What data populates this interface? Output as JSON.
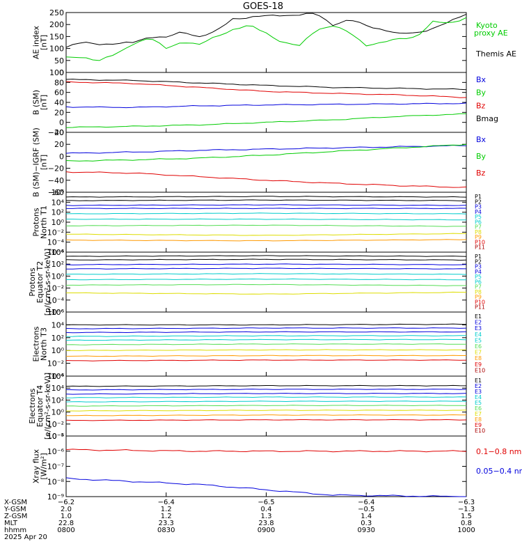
{
  "title": "GOES-18",
  "colors": {
    "black": "#000000",
    "red": "#e00000",
    "green": "#00cc00",
    "blue": "#0000dd",
    "cyan": "#00cccc",
    "lightgreen": "#55dd55",
    "yellow": "#dddd00",
    "orange": "#ff9900",
    "darkred": "#aa0000"
  },
  "chart_data": [
    {
      "type": "line",
      "id": "ae",
      "ylabel": "AE index\n[nT]",
      "ylim": [
        0,
        250
      ],
      "yticks": [
        "0",
        "50",
        "100",
        "150",
        "200",
        "250"
      ],
      "grid": false,
      "legend": [
        {
          "name": "Kyoto\nproxy AE",
          "color": "#00cc00"
        },
        {
          "name": "Themis AE",
          "color": "#000000"
        }
      ],
      "x": [
        0,
        5,
        10,
        15,
        20,
        25,
        30,
        35,
        40,
        45,
        50,
        55,
        60,
        65,
        70,
        75,
        80,
        85,
        90,
        95,
        100,
        105,
        110,
        115,
        120
      ],
      "series": [
        {
          "name": "Themis AE",
          "color": "#000000",
          "values": [
            105,
            125,
            120,
            118,
            125,
            150,
            145,
            170,
            150,
            170,
            225,
            230,
            235,
            240,
            240,
            245,
            200,
            220,
            195,
            180,
            160,
            165,
            185,
            210,
            245
          ]
        },
        {
          "name": "Kyoto proxy AE",
          "color": "#00cc00",
          "values": [
            60,
            65,
            50,
            75,
            120,
            145,
            100,
            130,
            115,
            150,
            180,
            195,
            165,
            125,
            110,
            180,
            195,
            165,
            115,
            125,
            140,
            150,
            210,
            205,
            230
          ]
        }
      ]
    },
    {
      "type": "line",
      "id": "bsm",
      "ylabel": "B (SM)\n[nT]",
      "ylim": [
        -20,
        100
      ],
      "yticks": [
        "−20",
        "0",
        "20",
        "40",
        "60",
        "80",
        "100"
      ],
      "grid": false,
      "legend": [
        {
          "name": "Bx",
          "color": "#0000dd"
        },
        {
          "name": "By",
          "color": "#00cc00"
        },
        {
          "name": "Bz",
          "color": "#e00000"
        },
        {
          "name": "Bmag",
          "color": "#000000"
        }
      ],
      "x": [
        0,
        20,
        40,
        60,
        80,
        100,
        120
      ],
      "series": [
        {
          "name": "Bmag",
          "color": "#000000",
          "values": [
            86,
            84,
            79,
            74,
            70,
            68,
            66
          ]
        },
        {
          "name": "Bz",
          "color": "#e00000",
          "values": [
            81,
            78,
            70,
            62,
            58,
            55,
            50
          ]
        },
        {
          "name": "Bx",
          "color": "#0000dd",
          "values": [
            31,
            30,
            33,
            35,
            36,
            37,
            38
          ]
        },
        {
          "name": "By",
          "color": "#00cc00",
          "values": [
            -10,
            -8,
            -5,
            0,
            5,
            12,
            17
          ]
        }
      ]
    },
    {
      "type": "line",
      "id": "bigrf",
      "ylabel": "B (SM)−IGRF (SM)\n[nT]",
      "ylim": [
        -60,
        40
      ],
      "yticks": [
        "−60",
        "−40",
        "−20",
        "0",
        "20",
        "40"
      ],
      "grid": false,
      "legend": [
        {
          "name": "Bx",
          "color": "#0000dd"
        },
        {
          "name": "By",
          "color": "#00cc00"
        },
        {
          "name": "Bz",
          "color": "#e00000"
        }
      ],
      "x": [
        0,
        20,
        40,
        60,
        80,
        100,
        120
      ],
      "series": [
        {
          "name": "Bx",
          "color": "#0000dd",
          "values": [
            5,
            7,
            10,
            12,
            14,
            16,
            18
          ]
        },
        {
          "name": "By",
          "color": "#00cc00",
          "values": [
            -8,
            -6,
            -3,
            2,
            8,
            14,
            20
          ]
        },
        {
          "name": "Bz",
          "color": "#e00000",
          "values": [
            -26,
            -28,
            -34,
            -40,
            -45,
            -49,
            -52
          ]
        }
      ]
    },
    {
      "type": "line",
      "id": "protons-t1",
      "ylabel": "Protons\nNorth T1",
      "ylim_exp": [
        -6,
        4
      ],
      "yticks": [
        "10⁶",
        "10⁴",
        "10²",
        "10⁰",
        "10⁻²",
        "10⁻⁴",
        "10⁻⁶"
      ],
      "legend": [
        {
          "name": "P1",
          "color": "#000000"
        },
        {
          "name": "P2",
          "color": "#000000"
        },
        {
          "name": "P3",
          "color": "#0000dd"
        },
        {
          "name": "P4",
          "color": "#0000dd"
        },
        {
          "name": "P5",
          "color": "#00cccc"
        },
        {
          "name": "P6",
          "color": "#00cccc"
        },
        {
          "name": "P7",
          "color": "#55dd55"
        },
        {
          "name": "P8",
          "color": "#dddd00"
        },
        {
          "name": "P9",
          "color": "#ff9900"
        },
        {
          "name": "P10",
          "color": "#e00000"
        },
        {
          "name": "P11",
          "color": "#aa0000"
        }
      ],
      "series": [
        {
          "name": "P1",
          "color": "#000000",
          "log_values": [
            3.2,
            3.3,
            3.2
          ]
        },
        {
          "name": "P2",
          "color": "#000000",
          "log_values": [
            2.6,
            2.7,
            2.6
          ]
        },
        {
          "name": "P3",
          "color": "#0000dd",
          "log_values": [
            1.8,
            1.9,
            1.8
          ]
        },
        {
          "name": "P4",
          "color": "#0000dd",
          "log_values": [
            1.3,
            1.3,
            1.3
          ]
        },
        {
          "name": "P5",
          "color": "#00cccc",
          "log_values": [
            0.4,
            0.5,
            0.4
          ]
        },
        {
          "name": "P6",
          "color": "#00cccc",
          "log_values": [
            -0.5,
            -0.5,
            -0.6
          ]
        },
        {
          "name": "P7",
          "color": "#55dd55",
          "log_values": [
            -1.6,
            -1.5,
            -1.7
          ]
        },
        {
          "name": "P8",
          "color": "#dddd00",
          "log_values": [
            -3.0,
            -3.2,
            -2.9
          ]
        },
        {
          "name": "P9",
          "color": "#ff9900",
          "log_values": [
            -4.0,
            -4.1,
            -3.9
          ]
        }
      ]
    },
    {
      "type": "line",
      "id": "protons-t2",
      "ylabel": "Protons\nEquator T2\n[p/(cm²-s-sr-keV)]",
      "ylim_exp": [
        -6,
        4
      ],
      "yticks": [
        "10⁴",
        "10²",
        "10⁰",
        "10⁻²",
        "10⁻⁴",
        "10⁻⁶"
      ],
      "legend": [
        {
          "name": "P1",
          "color": "#000000"
        },
        {
          "name": "P2",
          "color": "#000000"
        },
        {
          "name": "P3",
          "color": "#0000dd"
        },
        {
          "name": "P4",
          "color": "#0000dd"
        },
        {
          "name": "P5",
          "color": "#00cccc"
        },
        {
          "name": "P6",
          "color": "#00cccc"
        },
        {
          "name": "P7",
          "color": "#55dd55"
        },
        {
          "name": "P8",
          "color": "#dddd00"
        },
        {
          "name": "P9",
          "color": "#ff9900"
        },
        {
          "name": "P10",
          "color": "#e00000"
        },
        {
          "name": "P11",
          "color": "#aa0000"
        }
      ],
      "series": [
        {
          "name": "P1",
          "color": "#000000",
          "log_values": [
            3.3,
            3.4,
            3.3
          ]
        },
        {
          "name": "P2",
          "color": "#000000",
          "log_values": [
            2.7,
            2.8,
            2.7
          ]
        },
        {
          "name": "P3",
          "color": "#0000dd",
          "log_values": [
            1.9,
            2.0,
            1.9
          ]
        },
        {
          "name": "P4",
          "color": "#0000dd",
          "log_values": [
            1.2,
            1.3,
            1.2
          ]
        },
        {
          "name": "P5",
          "color": "#00cccc",
          "log_values": [
            0.3,
            0.4,
            0.3
          ]
        },
        {
          "name": "P6",
          "color": "#00cccc",
          "log_values": [
            -0.6,
            -0.5,
            -0.6
          ]
        },
        {
          "name": "P7",
          "color": "#55dd55",
          "log_values": [
            -1.5,
            -1.4,
            -1.6
          ]
        },
        {
          "name": "P8",
          "color": "#dddd00",
          "log_values": [
            -2.8,
            -3.0,
            -2.7
          ]
        }
      ]
    },
    {
      "type": "line",
      "id": "electrons-t3",
      "ylabel": "Electrons\nNorth T3",
      "ylim_exp": [
        -4,
        6
      ],
      "yticks": [
        "10⁶",
        "10⁴",
        "10²",
        "10⁰",
        "10⁻²",
        "10⁻⁴"
      ],
      "legend": [
        {
          "name": "E1",
          "color": "#000000"
        },
        {
          "name": "E2",
          "color": "#0000dd"
        },
        {
          "name": "E3",
          "color": "#0000dd"
        },
        {
          "name": "E4",
          "color": "#00cccc"
        },
        {
          "name": "E5",
          "color": "#00cccc"
        },
        {
          "name": "E6",
          "color": "#55dd55"
        },
        {
          "name": "E7",
          "color": "#dddd00"
        },
        {
          "name": "E8",
          "color": "#ff9900"
        },
        {
          "name": "E9",
          "color": "#e00000"
        },
        {
          "name": "E10",
          "color": "#aa0000"
        }
      ],
      "series": [
        {
          "name": "E1",
          "color": "#000000",
          "log_values": [
            4.0,
            4.0,
            4.1
          ]
        },
        {
          "name": "E2",
          "color": "#0000dd",
          "log_values": [
            3.4,
            3.5,
            3.5
          ]
        },
        {
          "name": "E3",
          "color": "#0000dd",
          "log_values": [
            2.8,
            2.9,
            2.9
          ]
        },
        {
          "name": "E4",
          "color": "#00cccc",
          "log_values": [
            2.2,
            2.3,
            2.3
          ]
        },
        {
          "name": "E5",
          "color": "#00cccc",
          "log_values": [
            1.6,
            1.7,
            1.7
          ]
        },
        {
          "name": "E6",
          "color": "#55dd55",
          "log_values": [
            0.9,
            1.0,
            1.0
          ]
        },
        {
          "name": "E7",
          "color": "#dddd00",
          "log_values": [
            0.0,
            0.1,
            0.1
          ]
        },
        {
          "name": "E8",
          "color": "#ff9900",
          "log_values": [
            -0.9,
            -0.8,
            -0.8
          ]
        },
        {
          "name": "E9",
          "color": "#e00000",
          "log_values": [
            -1.6,
            -1.5,
            -1.5
          ]
        }
      ]
    },
    {
      "type": "line",
      "id": "electrons-t4",
      "ylabel": "Electrons\nEquator T4\n[e/(cm²-s-sr-keV)]",
      "ylim_exp": [
        -4,
        6
      ],
      "yticks": [
        "10⁶",
        "10⁴",
        "10²",
        "10⁰",
        "10⁻²",
        "10⁻⁴"
      ],
      "legend": [
        {
          "name": "E1",
          "color": "#000000"
        },
        {
          "name": "E2",
          "color": "#0000dd"
        },
        {
          "name": "E3",
          "color": "#0000dd"
        },
        {
          "name": "E4",
          "color": "#00cccc"
        },
        {
          "name": "E5",
          "color": "#00cccc"
        },
        {
          "name": "E6",
          "color": "#55dd55"
        },
        {
          "name": "E7",
          "color": "#dddd00"
        },
        {
          "name": "E8",
          "color": "#ff9900"
        },
        {
          "name": "E9",
          "color": "#e00000"
        },
        {
          "name": "E10",
          "color": "#aa0000"
        }
      ],
      "series": [
        {
          "name": "E1",
          "color": "#000000",
          "log_values": [
            4.3,
            4.4,
            4.4
          ]
        },
        {
          "name": "E2",
          "color": "#0000dd",
          "log_values": [
            3.7,
            3.8,
            3.8
          ]
        },
        {
          "name": "E3",
          "color": "#0000dd",
          "log_values": [
            3.0,
            3.1,
            3.1
          ]
        },
        {
          "name": "E4",
          "color": "#00cccc",
          "log_values": [
            2.4,
            2.5,
            2.5
          ]
        },
        {
          "name": "E5",
          "color": "#00cccc",
          "log_values": [
            1.7,
            1.8,
            1.8
          ]
        },
        {
          "name": "E6",
          "color": "#55dd55",
          "log_values": [
            1.0,
            1.1,
            1.1
          ]
        },
        {
          "name": "E7",
          "color": "#dddd00",
          "log_values": [
            0.2,
            0.3,
            0.3
          ]
        },
        {
          "name": "E8",
          "color": "#ff9900",
          "log_values": [
            -0.6,
            -0.5,
            -0.5
          ]
        },
        {
          "name": "E9",
          "color": "#e00000",
          "log_values": [
            -1.4,
            -1.3,
            -1.3
          ]
        }
      ]
    },
    {
      "type": "line",
      "id": "xray",
      "ylabel": "Xray flux\n[W/m²]",
      "ylim_exp": [
        -9,
        -5
      ],
      "yticks": [
        "10⁻⁵",
        "10⁻⁶",
        "10⁻⁷",
        "10⁻⁸",
        "10⁻⁹"
      ],
      "legend": [
        {
          "name": "0.1−0.8 nm",
          "color": "#e00000"
        },
        {
          "name": "0.05−0.4 nm",
          "color": "#0000dd"
        }
      ],
      "series": [
        {
          "name": "0.1−0.8 nm",
          "color": "#e00000",
          "log_values": [
            -5.9,
            -6.0,
            -6.0,
            -6.0
          ]
        },
        {
          "name": "0.05−0.4 nm",
          "color": "#0000dd",
          "log_values": [
            -7.8,
            -8.2,
            -8.9,
            -9.0
          ]
        }
      ]
    }
  ],
  "xaxis": {
    "row_labels": [
      "X-GSM",
      "Y-GSM",
      "Z-GSM",
      "MLT",
      "hhmm",
      "2025 Apr 20"
    ],
    "columns": [
      [
        "−6.2",
        "2.0",
        "1.0",
        "22.8",
        "0800"
      ],
      [
        "−6.4",
        "1.2",
        "1.2",
        "23.3",
        "0830"
      ],
      [
        "−6.5",
        "0.4",
        "1.3",
        "23.8",
        "0900"
      ],
      [
        "−6.4",
        "−0.5",
        "1.4",
        "0.3",
        "0930"
      ],
      [
        "−6.3",
        "−1.3",
        "1.5",
        "0.8",
        "1000"
      ]
    ]
  }
}
